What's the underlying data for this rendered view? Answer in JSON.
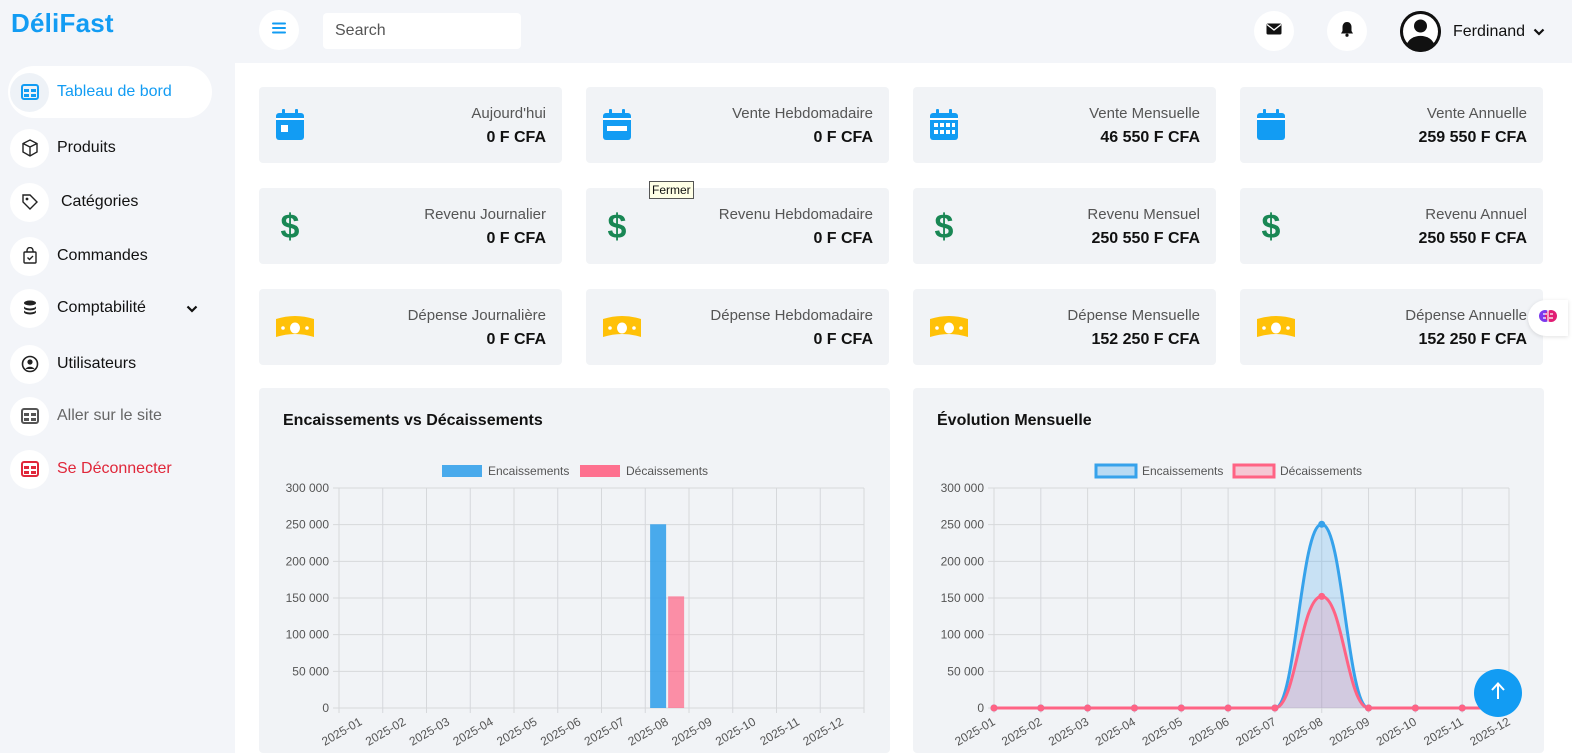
{
  "app": {
    "logo": "DéliFast"
  },
  "sidebar": {
    "items": [
      {
        "label": "Tableau de bord",
        "icon": "dashboard-icon"
      },
      {
        "label": "Produits",
        "icon": "box-icon"
      },
      {
        "label": "Catégories",
        "icon": "tag-icon"
      },
      {
        "label": "Commandes",
        "icon": "shopping-bag-icon"
      },
      {
        "label": "Comptabilité",
        "icon": "coins-icon"
      },
      {
        "label": "Utilisateurs",
        "icon": "user-circle-icon"
      },
      {
        "label": "Aller sur le site",
        "icon": "table-icon"
      },
      {
        "label": "Se Déconnecter",
        "icon": "logout-icon"
      }
    ]
  },
  "topbar": {
    "search_placeholder": "Search",
    "user_name": "Ferdinand"
  },
  "tooltip": {
    "text": "Fermer"
  },
  "cards": [
    {
      "label": "Aujourd'hui",
      "value": "0 F CFA"
    },
    {
      "label": "Vente Hebdomadaire",
      "value": "0 F CFA"
    },
    {
      "label": "Vente Mensuelle",
      "value": "46 550 F CFA"
    },
    {
      "label": "Vente Annuelle",
      "value": "259 550 F CFA"
    },
    {
      "label": "Revenu Journalier",
      "value": "0 F CFA"
    },
    {
      "label": "Revenu Hebdomadaire",
      "value": "0 F CFA"
    },
    {
      "label": "Revenu Mensuel",
      "value": "250 550 F CFA"
    },
    {
      "label": "Revenu Annuel",
      "value": "250 550 F CFA"
    },
    {
      "label": "Dépense Journalière",
      "value": "0 F CFA"
    },
    {
      "label": "Dépense Hebdomadaire",
      "value": "0 F CFA"
    },
    {
      "label": "Dépense Mensuelle",
      "value": "152 250 F CFA"
    },
    {
      "label": "Dépense Annuelle",
      "value": "152 250 F CFA"
    }
  ],
  "colors": {
    "accent": "#129cf3",
    "green": "#198754",
    "yellow": "#ffc107",
    "danger": "#e0273a",
    "enc": "#36a2eb",
    "dec": "#ff6384"
  },
  "chart_data": [
    {
      "type": "bar",
      "title": "Encaissements vs Décaissements",
      "categories": [
        "2025-01",
        "2025-02",
        "2025-03",
        "2025-04",
        "2025-05",
        "2025-06",
        "2025-07",
        "2025-08",
        "2025-09",
        "2025-10",
        "2025-11",
        "2025-12"
      ],
      "series": [
        {
          "name": "Encaissements",
          "values": [
            0,
            0,
            0,
            0,
            0,
            0,
            0,
            250550,
            0,
            0,
            0,
            0
          ]
        },
        {
          "name": "Décaissements",
          "values": [
            0,
            0,
            0,
            0,
            0,
            0,
            0,
            152250,
            0,
            0,
            0,
            0
          ]
        }
      ],
      "yticks": [
        "0",
        "50 000",
        "100 000",
        "150 000",
        "200 000",
        "250 000",
        "300 000"
      ],
      "ylim": [
        0,
        300000
      ],
      "legend": "top"
    },
    {
      "type": "area",
      "title": "Évolution Mensuelle",
      "categories": [
        "2025-01",
        "2025-02",
        "2025-03",
        "2025-04",
        "2025-05",
        "2025-06",
        "2025-07",
        "2025-08",
        "2025-09",
        "2025-10",
        "2025-11",
        "2025-12"
      ],
      "series": [
        {
          "name": "Encaissements",
          "values": [
            0,
            0,
            0,
            0,
            0,
            0,
            0,
            250550,
            0,
            0,
            0,
            0
          ]
        },
        {
          "name": "Décaissements",
          "values": [
            0,
            0,
            0,
            0,
            0,
            0,
            0,
            152250,
            0,
            0,
            0,
            0
          ]
        }
      ],
      "yticks": [
        "0",
        "50 000",
        "100 000",
        "150 000",
        "200 000",
        "250 000",
        "300 000"
      ],
      "ylim": [
        0,
        300000
      ],
      "legend": "top"
    }
  ]
}
